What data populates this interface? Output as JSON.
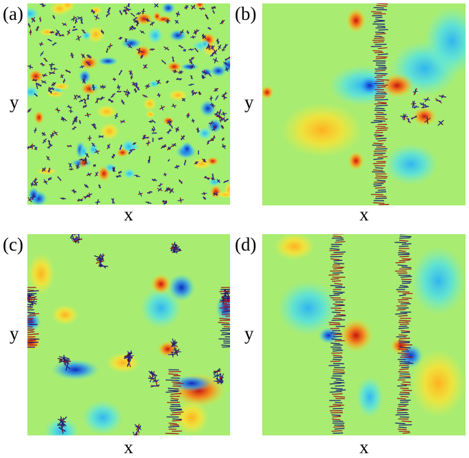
{
  "panels": [
    {
      "label": "(a)",
      "xlabel": "x",
      "ylabel": "y"
    },
    {
      "label": "(b)",
      "xlabel": "x",
      "ylabel": "y"
    },
    {
      "label": "(c)",
      "xlabel": "x",
      "ylabel": "y"
    },
    {
      "label": "(d)",
      "xlabel": "x",
      "ylabel": "y"
    }
  ]
}
